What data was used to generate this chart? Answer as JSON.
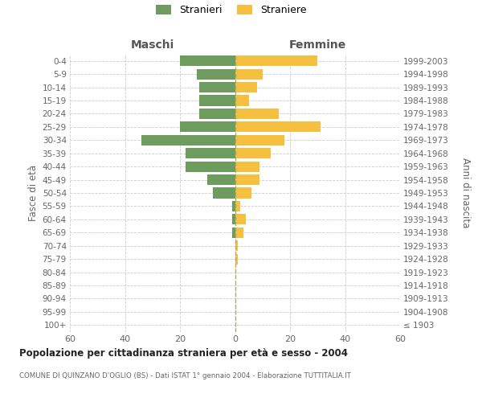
{
  "age_groups": [
    "100+",
    "95-99",
    "90-94",
    "85-89",
    "80-84",
    "75-79",
    "70-74",
    "65-69",
    "60-64",
    "55-59",
    "50-54",
    "45-49",
    "40-44",
    "35-39",
    "30-34",
    "25-29",
    "20-24",
    "15-19",
    "10-14",
    "5-9",
    "0-4"
  ],
  "birth_years": [
    "≤ 1903",
    "1904-1908",
    "1909-1913",
    "1914-1918",
    "1919-1923",
    "1924-1928",
    "1929-1933",
    "1934-1938",
    "1939-1943",
    "1944-1948",
    "1949-1953",
    "1954-1958",
    "1959-1963",
    "1964-1968",
    "1969-1973",
    "1974-1978",
    "1979-1983",
    "1984-1988",
    "1989-1993",
    "1994-1998",
    "1999-2003"
  ],
  "males": [
    0,
    0,
    0,
    0,
    0,
    0,
    0,
    1,
    1,
    1,
    8,
    10,
    18,
    18,
    34,
    20,
    13,
    13,
    13,
    14,
    20
  ],
  "females": [
    0,
    0,
    0,
    0,
    0,
    1,
    1,
    3,
    4,
    2,
    6,
    9,
    9,
    13,
    18,
    31,
    16,
    5,
    8,
    10,
    30
  ],
  "male_color": "#6e9b5e",
  "female_color": "#f5c040",
  "male_label": "Stranieri",
  "female_label": "Straniere",
  "title": "Popolazione per cittadinanza straniera per età e sesso - 2004",
  "subtitle": "COMUNE DI QUINZANO D'OGLIO (BS) - Dati ISTAT 1° gennaio 2004 - Elaborazione TUTTITALIA.IT",
  "header_left": "Maschi",
  "header_right": "Femmine",
  "ylabel_left": "Fasce di età",
  "ylabel_right": "Anni di nascita",
  "xlim": 60,
  "background_color": "#ffffff",
  "grid_color": "#cccccc"
}
